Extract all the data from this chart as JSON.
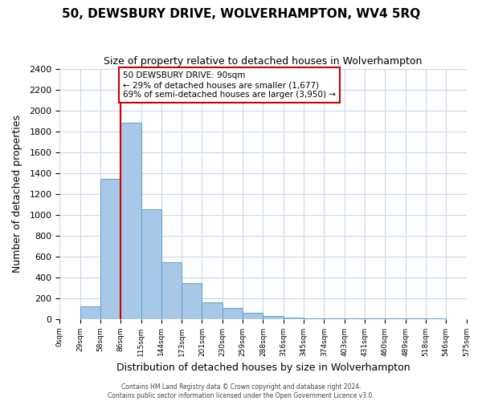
{
  "title": "50, DEWSBURY DRIVE, WOLVERHAMPTON, WV4 5RQ",
  "subtitle": "Size of property relative to detached houses in Wolverhampton",
  "xlabel": "Distribution of detached houses by size in Wolverhampton",
  "ylabel": "Number of detached properties",
  "bar_values": [
    0,
    120,
    1340,
    1880,
    1050,
    540,
    340,
    160,
    105,
    55,
    30,
    10,
    5,
    5,
    5,
    5,
    5,
    5,
    5
  ],
  "bin_labels": [
    "0sqm",
    "29sqm",
    "58sqm",
    "86sqm",
    "115sqm",
    "144sqm",
    "173sqm",
    "201sqm",
    "230sqm",
    "259sqm",
    "288sqm",
    "316sqm",
    "345sqm",
    "374sqm",
    "403sqm",
    "431sqm",
    "460sqm",
    "489sqm",
    "518sqm",
    "546sqm",
    "575sqm"
  ],
  "bar_color": "#a8c8e8",
  "bar_edge_color": "#5a9fd4",
  "background_color": "#ffffff",
  "grid_color": "#c8d8e8",
  "vline_x": 3.0,
  "vline_color": "#cc0000",
  "annotation_lines": [
    "50 DEWSBURY DRIVE: 90sqm",
    "← 29% of detached houses are smaller (1,677)",
    "69% of semi-detached houses are larger (3,950) →"
  ],
  "annotation_box_color": "#ffffff",
  "annotation_box_edge_color": "#cc0000",
  "ylim": [
    0,
    2400
  ],
  "yticks": [
    0,
    200,
    400,
    600,
    800,
    1000,
    1200,
    1400,
    1600,
    1800,
    2000,
    2200,
    2400
  ],
  "footer_lines": [
    "Contains HM Land Registry data © Crown copyright and database right 2024.",
    "Contains public sector information licensed under the Open Government Licence v3.0."
  ]
}
